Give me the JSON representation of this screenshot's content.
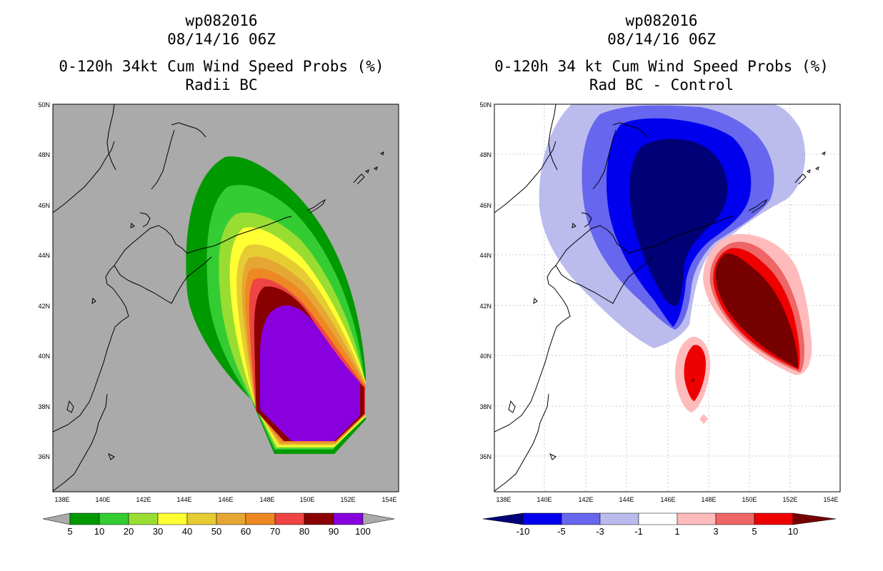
{
  "left_panel": {
    "title_line1": "wp082016",
    "title_line2": "08/14/16 06Z",
    "title_line3": "0-120h 34kt Cum Wind Speed Probs (%)",
    "title_line4": "Radii BC",
    "background_color": "#aaaaaa"
  },
  "right_panel": {
    "title_line1": "wp082016",
    "title_line2": "08/14/16 06Z",
    "title_line3": "0-120h 34 kt Cum Wind Speed Probs (%)",
    "title_line4": "Rad BC - Control",
    "background_color": "#ffffff"
  },
  "axes": {
    "lon_labels": [
      "138E",
      "140E",
      "142E",
      "144E",
      "146E",
      "148E",
      "150E",
      "152E",
      "154E"
    ],
    "lat_labels": [
      "50N",
      "48N",
      "46N",
      "44N",
      "42N",
      "40N",
      "38N",
      "36N"
    ]
  },
  "left_colorbar": {
    "labels": [
      "5",
      "10",
      "20",
      "30",
      "40",
      "50",
      "60",
      "70",
      "80",
      "90",
      "100"
    ],
    "colors": [
      "#009900",
      "#33cc33",
      "#99dd33",
      "#ffff33",
      "#e6cc33",
      "#e6a633",
      "#ee8822",
      "#ee4444",
      "#880000",
      "#8800dd"
    ]
  },
  "right_colorbar": {
    "labels": [
      "-10",
      "-5",
      "-3",
      "-1",
      "1",
      "3",
      "5",
      "10"
    ],
    "colors": [
      "#0000ee",
      "#6666ee",
      "#bbbbee",
      "#ffffff",
      "#ffbbbb",
      "#ee6666",
      "#ee0000"
    ],
    "end_low": "#000077",
    "end_high": "#770000"
  }
}
